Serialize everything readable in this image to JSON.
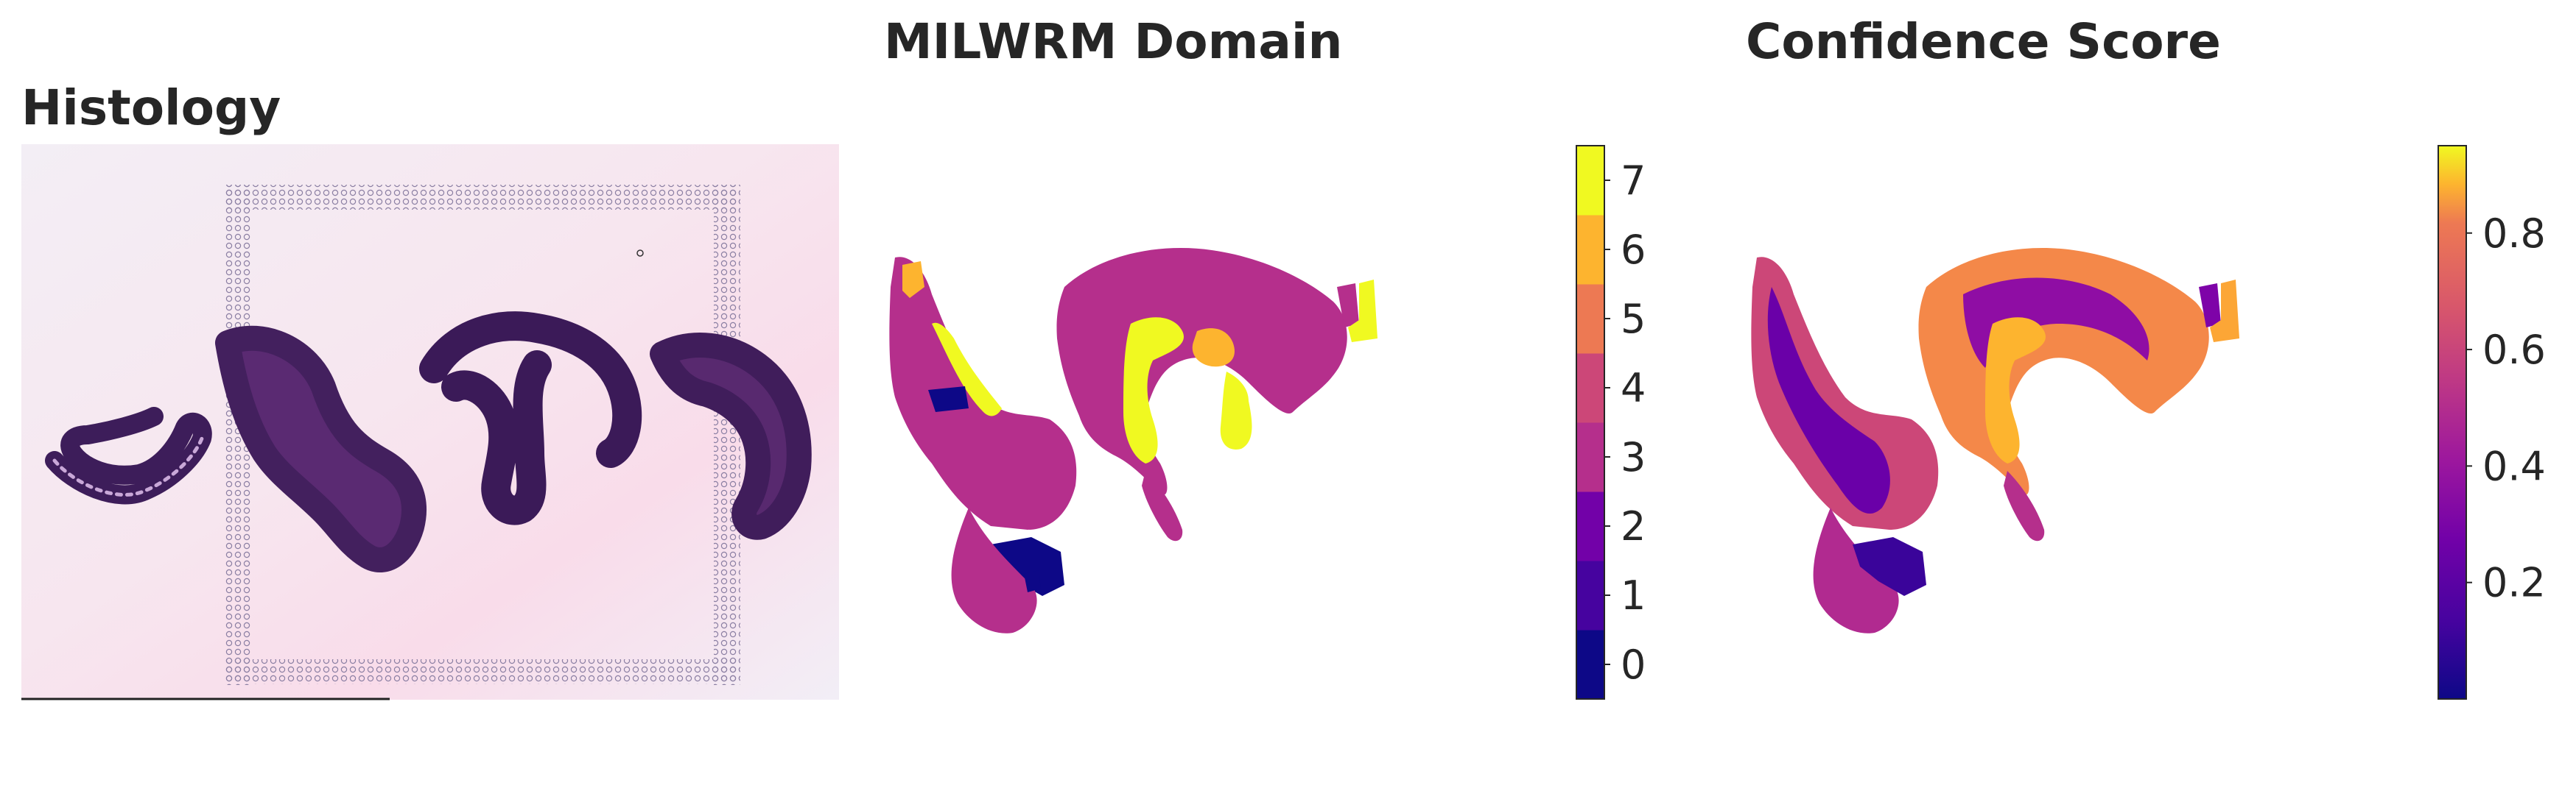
{
  "titles": {
    "histology": "Histology",
    "domain": "MILWRM Domain",
    "confidence": "Confidence Score"
  },
  "chart_data": [
    {
      "type": "image",
      "title": "Histology",
      "description_tissue": "H&E stained tissue section on slide with fiducial spot frame"
    },
    {
      "type": "heatmap",
      "title": "MILWRM Domain",
      "colorbar": {
        "categorical": true,
        "ticks": [
          0,
          1,
          2,
          3,
          4,
          5,
          6,
          7
        ],
        "tick_labels": [
          "0",
          "1",
          "2",
          "3",
          "4",
          "5",
          "6",
          "7"
        ],
        "colors": [
          "#0d0887",
          "#46039f",
          "#7201a8",
          "#b52f8c",
          "#cc4778",
          "#ed7953",
          "#fdb42f",
          "#f0f921"
        ]
      }
    },
    {
      "type": "heatmap",
      "title": "Confidence Score",
      "colorbar": {
        "colormap": "plasma",
        "range": [
          0.0,
          0.95
        ],
        "ticks": [
          0.2,
          0.4,
          0.6,
          0.8
        ],
        "tick_labels": [
          "0.2",
          "0.4",
          "0.6",
          "0.8"
        ]
      }
    }
  ]
}
